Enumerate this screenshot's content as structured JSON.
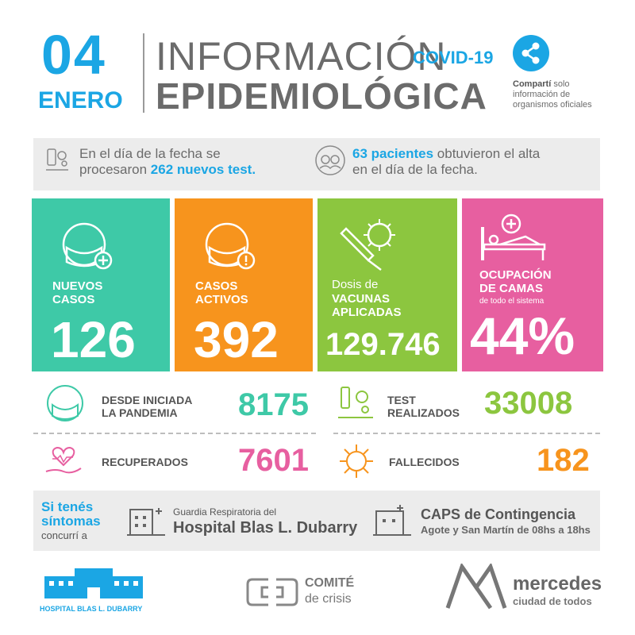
{
  "header": {
    "day": "04",
    "month": "ENERO",
    "title_line1": "INFORMACIÓN",
    "covid_label": "COVID-19",
    "title_line2": "EPIDEMIOLÓGICA",
    "share_bold": "Compartí",
    "share_rest": " solo",
    "share_line2": "información de",
    "share_line3": "organismos oficiales"
  },
  "info": {
    "tests_prefix": "En el día de la fecha se",
    "tests_prefix2": "procesaron ",
    "tests_highlight": "262 nuevos test.",
    "discharge_highlight": "63 pacientes",
    "discharge_rest": " obtuvieron el alta",
    "discharge_line2": "en el día de la fecha."
  },
  "cards": {
    "nuevos": {
      "label1": "NUEVOS",
      "label2": "CASOS",
      "value": "126",
      "color": "#3ec9a7"
    },
    "activos": {
      "label1": "CASOS",
      "label2": "ACTIVOS",
      "value": "392",
      "color": "#f7941d"
    },
    "vacunas": {
      "pre": "Dosis de",
      "label1": "VACUNAS",
      "label2": "APLICADAS",
      "value": "129.746",
      "color": "#8cc63f"
    },
    "camas": {
      "label1": "OCUPACIÓN",
      "label2": "DE CAMAS",
      "sub": "de todo el sistema",
      "value": "44%",
      "color": "#e75fa0"
    }
  },
  "stats": {
    "pandemia": {
      "label1": "DESDE INICIADA",
      "label2": "LA PANDEMIA",
      "value": "8175",
      "color": "#3ec9a7"
    },
    "test": {
      "label1": "TEST",
      "label2": "REALIZADOS",
      "value": "33008",
      "color": "#8cc63f"
    },
    "recuperados": {
      "label": "RECUPERADOS",
      "value": "7601",
      "color": "#e75fa0"
    },
    "fallecidos": {
      "label": "FALLECIDOS",
      "value": "182",
      "color": "#f7941d"
    }
  },
  "symptoms": {
    "line1": "Si tenés",
    "line2": "síntomas",
    "line3": "concurrí a",
    "hospital_pre": "Guardia Respiratoria del",
    "hospital_name": "Hospital Blas L. Dubarry",
    "caps_name": "CAPS de Contingencia",
    "caps_detail": "Agote y San Martín de 08hs a 18hs"
  },
  "footer": {
    "hospital_logo_text": "HOSPITAL BLAS L. DUBARRY",
    "comite_line1": "COMITÉ",
    "comite_line2": "de crisis",
    "mercedes_line1": "mercedes",
    "mercedes_line2": "ciudad de todos"
  }
}
